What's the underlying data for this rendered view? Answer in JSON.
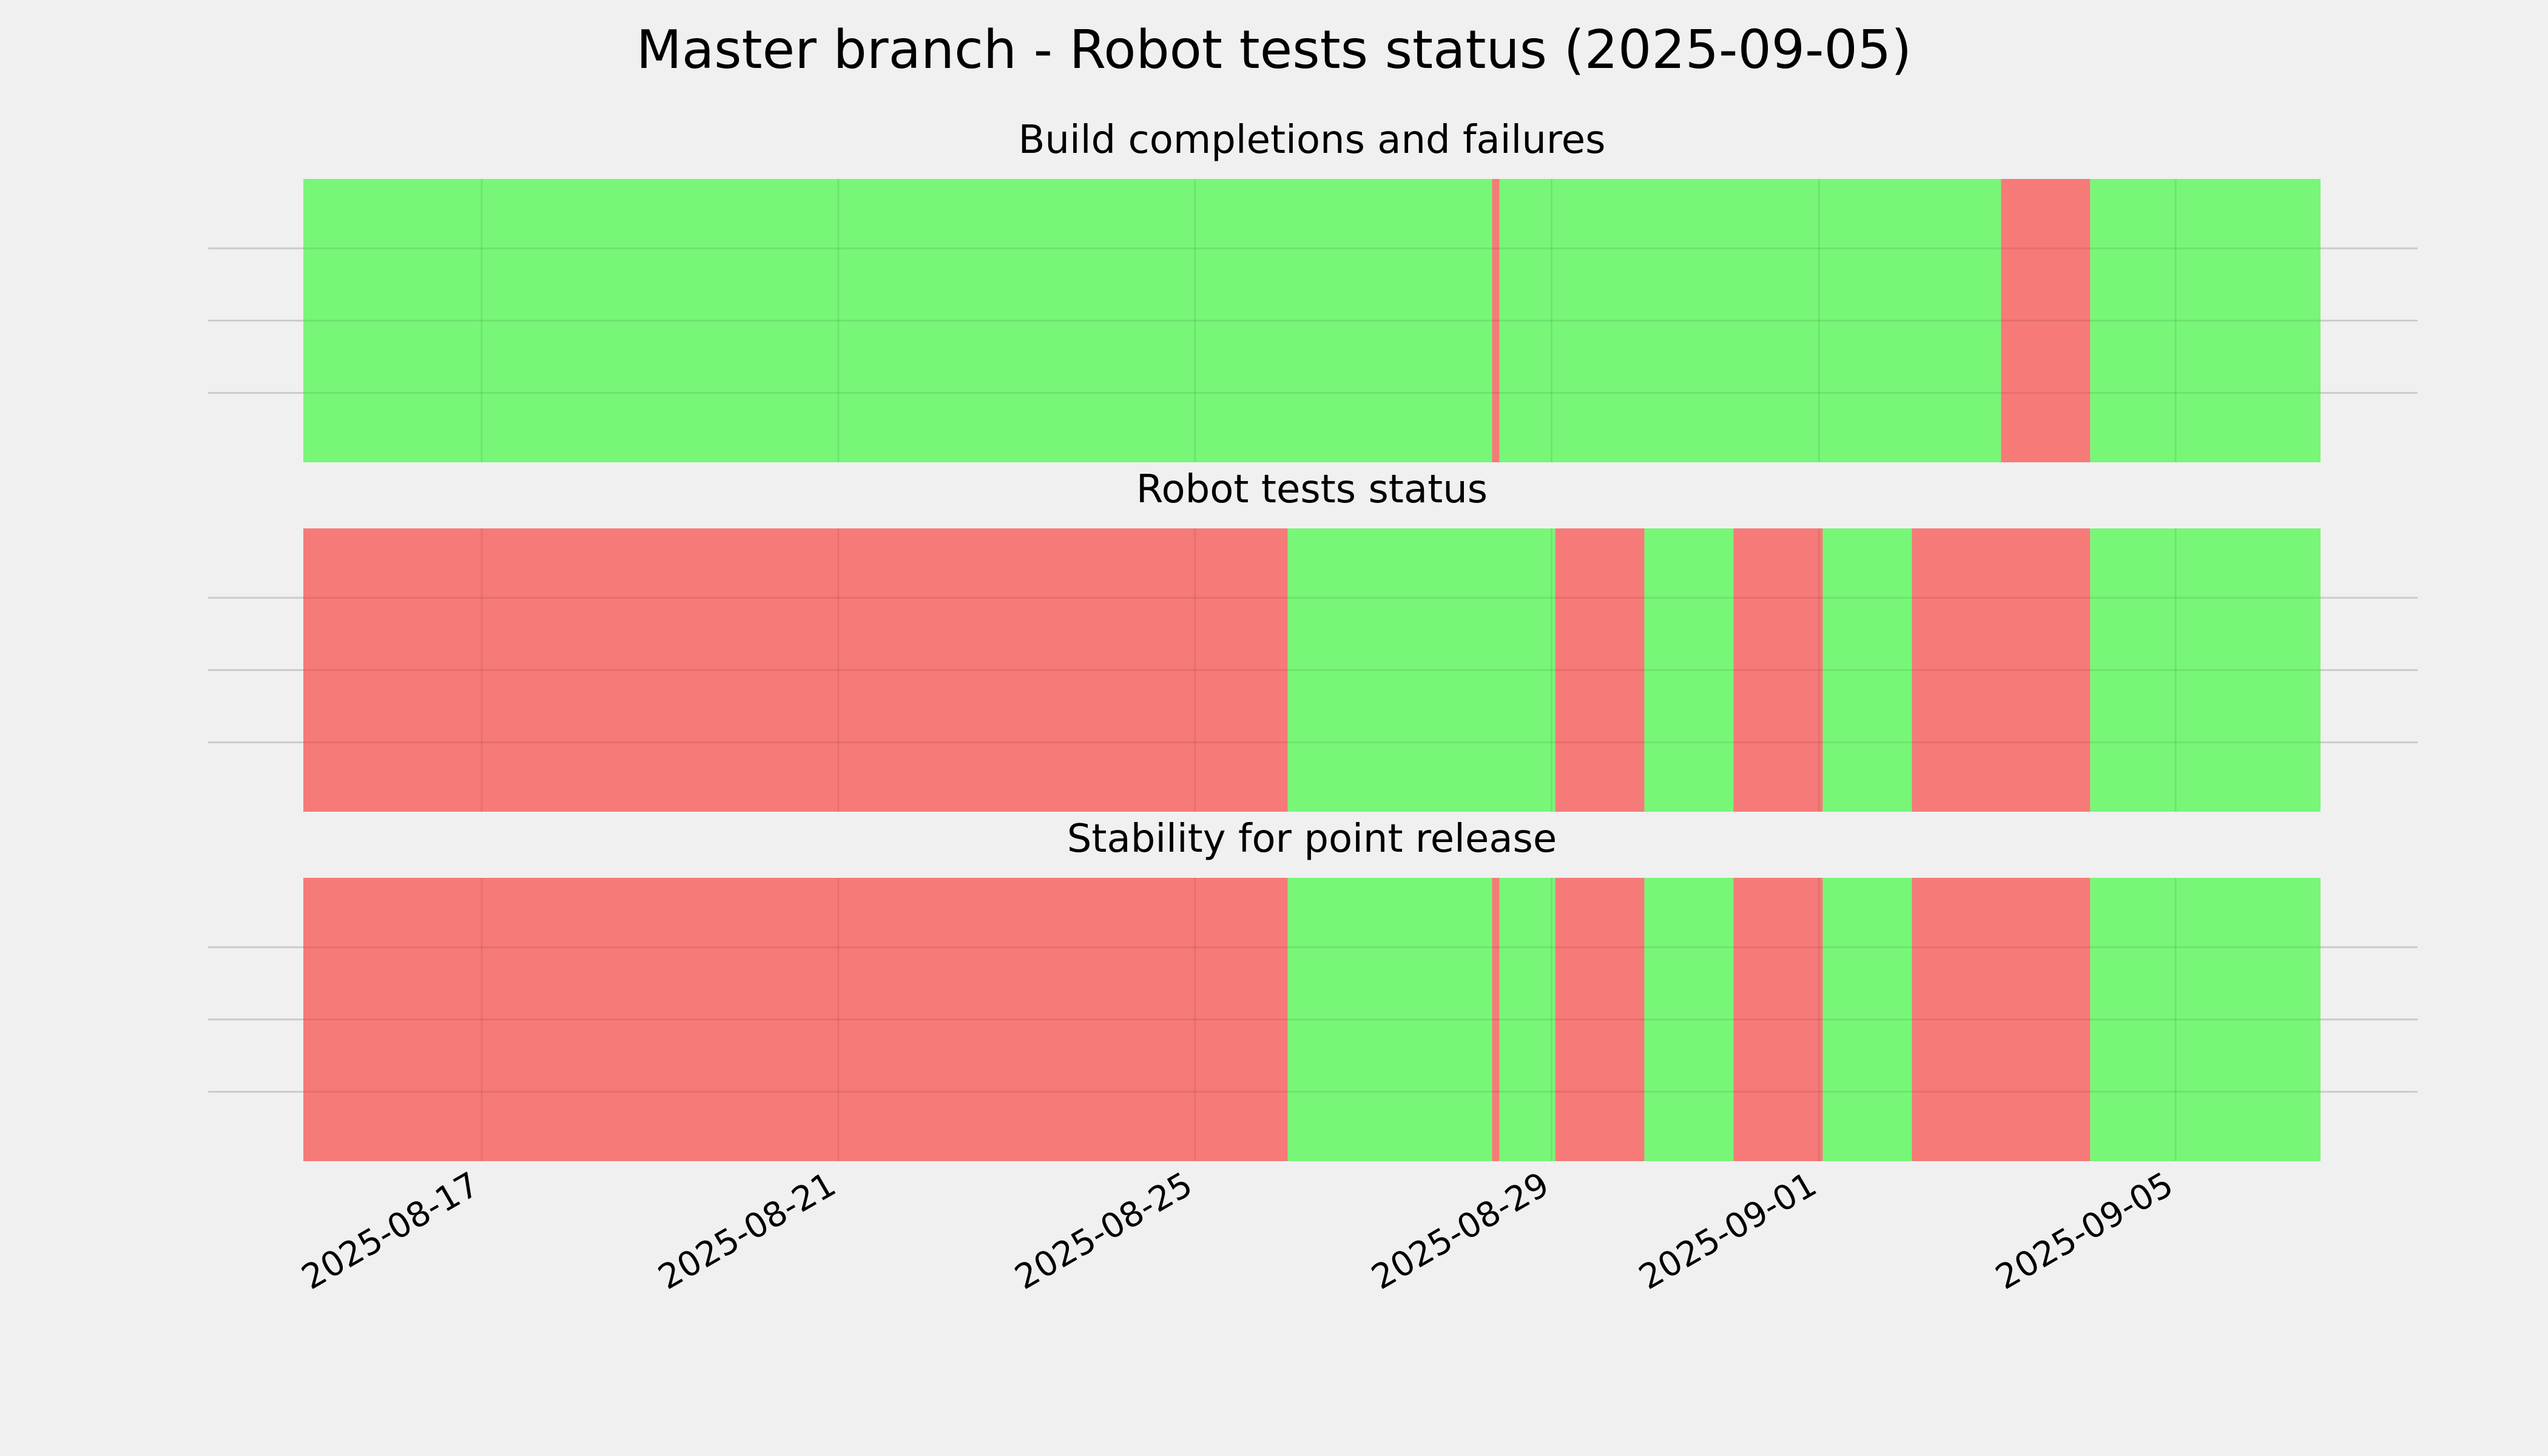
{
  "chart_data": {
    "type": "timeline",
    "title": "Master branch - Robot tests status (2025-09-05)",
    "x_axis": {
      "type": "date",
      "range": [
        "2025-08-15T00:00",
        "2025-09-06T15:00"
      ],
      "tick_labels": [
        "2025-08-17",
        "2025-08-21",
        "2025-08-25",
        "2025-08-29",
        "2025-09-01",
        "2025-09-05"
      ]
    },
    "grid": true,
    "status_colors": {
      "pass": "#74f674",
      "fail": "#f67674"
    },
    "panels": [
      {
        "title": "Build completions and failures",
        "segments": [
          {
            "start": "2025-08-15T00:00",
            "end": "2025-08-28T08:00",
            "status": "pass"
          },
          {
            "start": "2025-08-28T08:00",
            "end": "2025-08-28T10:00",
            "status": "fail"
          },
          {
            "start": "2025-08-28T10:00",
            "end": "2025-09-03T01:00",
            "status": "pass"
          },
          {
            "start": "2025-09-03T01:00",
            "end": "2025-09-04T01:00",
            "status": "fail"
          },
          {
            "start": "2025-09-04T01:00",
            "end": "2025-09-06T15:00",
            "status": "pass"
          }
        ]
      },
      {
        "title": "Robot tests status",
        "segments": [
          {
            "start": "2025-08-15T00:00",
            "end": "2025-08-26T01:00",
            "status": "fail"
          },
          {
            "start": "2025-08-26T01:00",
            "end": "2025-08-29T01:00",
            "status": "pass"
          },
          {
            "start": "2025-08-29T01:00",
            "end": "2025-08-30T01:00",
            "status": "fail"
          },
          {
            "start": "2025-08-30T01:00",
            "end": "2025-08-31T01:00",
            "status": "pass"
          },
          {
            "start": "2025-08-31T01:00",
            "end": "2025-09-01T01:00",
            "status": "fail"
          },
          {
            "start": "2025-09-01T01:00",
            "end": "2025-09-02T01:00",
            "status": "pass"
          },
          {
            "start": "2025-09-02T01:00",
            "end": "2025-09-04T01:00",
            "status": "fail"
          },
          {
            "start": "2025-09-04T01:00",
            "end": "2025-09-06T15:00",
            "status": "pass"
          }
        ]
      },
      {
        "title": "Stability for point release",
        "segments": [
          {
            "start": "2025-08-15T00:00",
            "end": "2025-08-26T01:00",
            "status": "fail"
          },
          {
            "start": "2025-08-26T01:00",
            "end": "2025-08-28T08:00",
            "status": "pass"
          },
          {
            "start": "2025-08-28T08:00",
            "end": "2025-08-28T10:00",
            "status": "fail"
          },
          {
            "start": "2025-08-28T10:00",
            "end": "2025-08-29T01:00",
            "status": "pass"
          },
          {
            "start": "2025-08-29T01:00",
            "end": "2025-08-30T01:00",
            "status": "fail"
          },
          {
            "start": "2025-08-30T01:00",
            "end": "2025-08-31T01:00",
            "status": "pass"
          },
          {
            "start": "2025-08-31T01:00",
            "end": "2025-09-01T01:00",
            "status": "fail"
          },
          {
            "start": "2025-09-01T01:00",
            "end": "2025-09-02T01:00",
            "status": "pass"
          },
          {
            "start": "2025-09-02T01:00",
            "end": "2025-09-04T01:00",
            "status": "fail"
          },
          {
            "start": "2025-09-04T01:00",
            "end": "2025-09-06T15:00",
            "status": "pass"
          }
        ]
      }
    ]
  }
}
